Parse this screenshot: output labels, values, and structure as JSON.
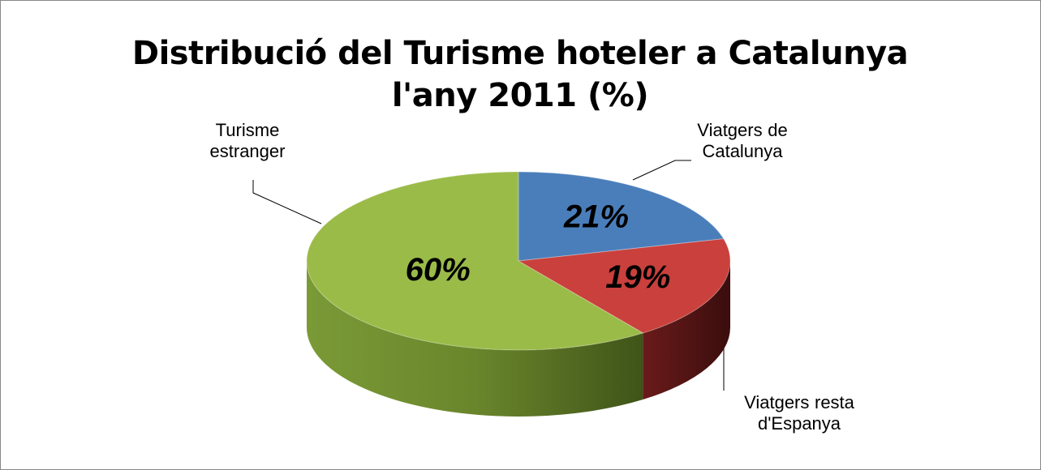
{
  "chart_data": {
    "type": "pie3d",
    "title": "Distribució del Turisme hoteler a Catalunya l'any 2011 (%)",
    "categories": [
      "Viatgers de Catalunya",
      "Viatgers  resta d'Espanya",
      "Turisme estranger"
    ],
    "values": [
      21,
      19,
      60
    ],
    "value_labels": [
      "21%",
      "19%",
      "60%"
    ],
    "colors": [
      "#4a7ebb",
      "#c9403c",
      "#9bbb49"
    ]
  }
}
